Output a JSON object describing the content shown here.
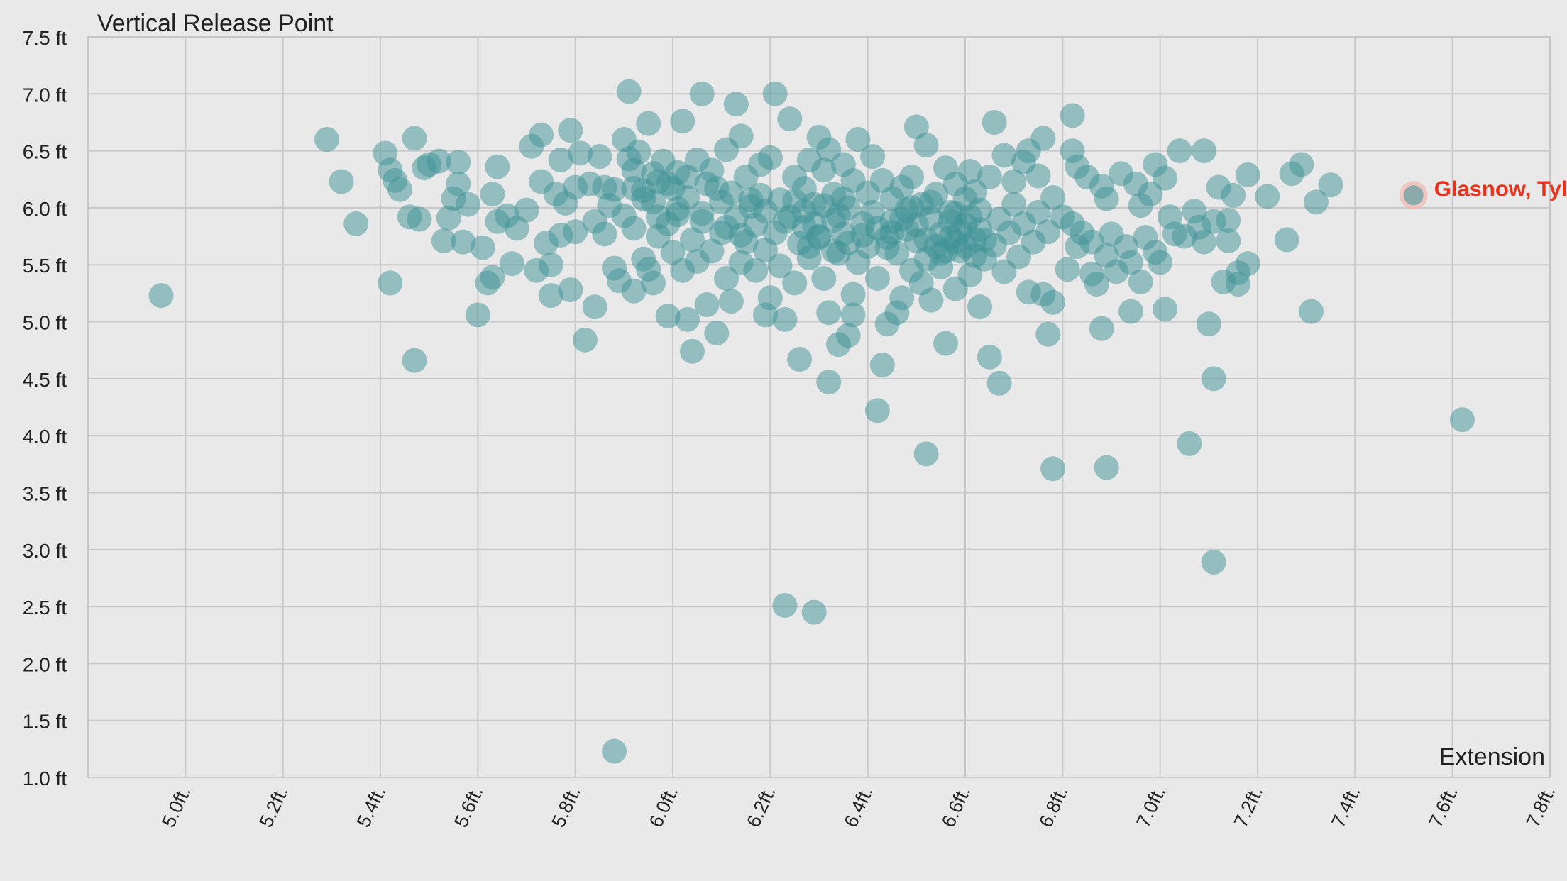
{
  "chart_data": {
    "type": "scatter",
    "title": "",
    "ylabel": "Vertical Release Point",
    "xlabel": "Extension",
    "xlim": [
      4.8,
      7.8
    ],
    "ylim": [
      1.0,
      7.5
    ],
    "x_ticks": [
      "5.0ft.",
      "5.2ft.",
      "5.4ft.",
      "5.6ft.",
      "5.8ft.",
      "6.0ft.",
      "6.2ft.",
      "6.4ft.",
      "6.6ft.",
      "6.8ft.",
      "7.0ft.",
      "7.2ft.",
      "7.4ft.",
      "7.6ft.",
      "7.8ft."
    ],
    "x_tick_values": [
      5.0,
      5.2,
      5.4,
      5.6,
      5.8,
      6.0,
      6.2,
      6.4,
      6.6,
      6.8,
      7.0,
      7.2,
      7.4,
      7.6,
      7.8
    ],
    "y_ticks": [
      "1.0 ft",
      "1.5 ft",
      "2.0 ft",
      "2.5 ft",
      "3.0 ft",
      "3.5 ft",
      "4.0 ft",
      "4.5 ft",
      "5.0 ft",
      "5.5 ft",
      "6.0 ft",
      "6.5 ft",
      "7.0 ft",
      "7.5 ft"
    ],
    "y_tick_values": [
      1.0,
      1.5,
      2.0,
      2.5,
      3.0,
      3.5,
      4.0,
      4.5,
      5.0,
      5.5,
      6.0,
      6.5,
      7.0,
      7.5
    ],
    "grid": true,
    "colors": {
      "points": "#3d9196",
      "highlight": "#e8331c",
      "grid": "#c8c8c8",
      "background": "#e9e9e9"
    },
    "highlight": {
      "label": "Glasnow, Tyle",
      "x": 7.52,
      "y": 6.11
    },
    "points": [
      [
        4.95,
        5.23
      ],
      [
        5.29,
        6.6
      ],
      [
        5.32,
        6.23
      ],
      [
        5.35,
        5.86
      ],
      [
        5.41,
        6.48
      ],
      [
        5.42,
        6.33
      ],
      [
        5.43,
        6.24
      ],
      [
        5.44,
        6.16
      ],
      [
        5.42,
        5.34
      ],
      [
        5.46,
        5.92
      ],
      [
        5.47,
        6.61
      ],
      [
        5.47,
        4.66
      ],
      [
        5.48,
        5.9
      ],
      [
        5.49,
        6.35
      ],
      [
        5.5,
        6.38
      ],
      [
        5.52,
        6.41
      ],
      [
        5.54,
        5.91
      ],
      [
        5.53,
        5.71
      ],
      [
        5.55,
        6.08
      ],
      [
        5.56,
        6.4
      ],
      [
        5.56,
        6.21
      ],
      [
        5.57,
        5.7
      ],
      [
        5.58,
        6.03
      ],
      [
        5.6,
        5.06
      ],
      [
        5.61,
        5.65
      ],
      [
        5.62,
        5.34
      ],
      [
        5.63,
        5.39
      ],
      [
        5.63,
        6.12
      ],
      [
        5.64,
        6.36
      ],
      [
        5.64,
        5.88
      ],
      [
        5.66,
        5.93
      ],
      [
        5.67,
        5.51
      ],
      [
        5.68,
        5.82
      ],
      [
        5.7,
        5.98
      ],
      [
        5.71,
        6.54
      ],
      [
        5.72,
        5.45
      ],
      [
        5.73,
        6.64
      ],
      [
        5.73,
        6.23
      ],
      [
        5.74,
        5.69
      ],
      [
        5.75,
        5.23
      ],
      [
        5.75,
        5.5
      ],
      [
        5.76,
        6.12
      ],
      [
        5.77,
        6.42
      ],
      [
        5.77,
        5.76
      ],
      [
        5.78,
        6.04
      ],
      [
        5.79,
        6.68
      ],
      [
        5.79,
        5.28
      ],
      [
        5.8,
        6.18
      ],
      [
        5.8,
        5.79
      ],
      [
        5.81,
        6.48
      ],
      [
        5.82,
        4.84
      ],
      [
        5.83,
        6.21
      ],
      [
        5.84,
        5.13
      ],
      [
        5.84,
        5.88
      ],
      [
        5.85,
        6.45
      ],
      [
        5.86,
        6.18
      ],
      [
        5.86,
        5.77
      ],
      [
        5.87,
        6.02
      ],
      [
        5.88,
        5.47
      ],
      [
        5.88,
        6.16
      ],
      [
        5.88,
        1.23
      ],
      [
        5.89,
        5.36
      ],
      [
        5.9,
        6.6
      ],
      [
        5.9,
        5.93
      ],
      [
        5.91,
        7.02
      ],
      [
        5.92,
        6.33
      ],
      [
        5.92,
        5.82
      ],
      [
        5.92,
        5.27
      ],
      [
        5.93,
        6.49
      ],
      [
        5.94,
        6.15
      ],
      [
        5.94,
        5.55
      ],
      [
        5.95,
        6.74
      ],
      [
        5.95,
        5.46
      ],
      [
        5.96,
        6.05
      ],
      [
        5.96,
        5.34
      ],
      [
        5.97,
        6.23
      ],
      [
        5.97,
        5.75
      ],
      [
        5.98,
        6.41
      ],
      [
        5.99,
        5.86
      ],
      [
        5.99,
        5.05
      ],
      [
        6.0,
        6.17
      ],
      [
        6.0,
        5.61
      ],
      [
        6.01,
        6.31
      ],
      [
        6.01,
        5.94
      ],
      [
        6.02,
        6.76
      ],
      [
        6.02,
        5.45
      ],
      [
        6.03,
        5.02
      ],
      [
        6.03,
        6.09
      ],
      [
        6.04,
        5.72
      ],
      [
        6.04,
        4.74
      ],
      [
        6.05,
        6.42
      ],
      [
        6.05,
        5.53
      ],
      [
        6.06,
        7.0
      ],
      [
        6.06,
        5.88
      ],
      [
        6.07,
        6.21
      ],
      [
        6.07,
        5.15
      ],
      [
        6.08,
        5.62
      ],
      [
        6.08,
        6.33
      ],
      [
        6.09,
        4.9
      ],
      [
        6.1,
        6.05
      ],
      [
        6.1,
        5.78
      ],
      [
        6.11,
        6.51
      ],
      [
        6.11,
        5.38
      ],
      [
        6.12,
        6.13
      ],
      [
        6.12,
        5.18
      ],
      [
        6.13,
        5.92
      ],
      [
        6.13,
        6.91
      ],
      [
        6.14,
        6.63
      ],
      [
        6.14,
        5.52
      ],
      [
        6.15,
        6.27
      ],
      [
        6.15,
        5.7
      ],
      [
        6.16,
        6.01
      ],
      [
        6.17,
        5.85
      ],
      [
        6.17,
        5.45
      ],
      [
        6.18,
        6.38
      ],
      [
        6.18,
        6.11
      ],
      [
        6.19,
        5.06
      ],
      [
        6.19,
        5.63
      ],
      [
        6.2,
        5.21
      ],
      [
        6.2,
        6.44
      ],
      [
        6.21,
        7.0
      ],
      [
        6.21,
        5.78
      ],
      [
        6.22,
        6.07
      ],
      [
        6.22,
        5.49
      ],
      [
        6.23,
        2.51
      ],
      [
        6.23,
        5.02
      ],
      [
        6.24,
        6.78
      ],
      [
        6.24,
        5.92
      ],
      [
        6.25,
        6.27
      ],
      [
        6.25,
        5.34
      ],
      [
        6.26,
        4.67
      ],
      [
        6.26,
        5.69
      ],
      [
        6.27,
        6.17
      ],
      [
        6.27,
        5.83
      ],
      [
        6.28,
        6.42
      ],
      [
        6.28,
        5.56
      ],
      [
        6.29,
        2.45
      ],
      [
        6.29,
        6.03
      ],
      [
        6.3,
        6.62
      ],
      [
        6.3,
        5.74
      ],
      [
        6.31,
        5.38
      ],
      [
        6.31,
        6.33
      ],
      [
        6.32,
        5.08
      ],
      [
        6.32,
        6.51
      ],
      [
        6.32,
        4.47
      ],
      [
        6.33,
        5.89
      ],
      [
        6.33,
        6.12
      ],
      [
        6.34,
        4.8
      ],
      [
        6.34,
        5.6
      ],
      [
        6.35,
        6.38
      ],
      [
        6.35,
        5.77
      ],
      [
        6.36,
        4.88
      ],
      [
        6.36,
        6.0
      ],
      [
        6.37,
        5.24
      ],
      [
        6.37,
        6.24
      ],
      [
        6.37,
        5.06
      ],
      [
        6.38,
        5.52
      ],
      [
        6.38,
        6.6
      ],
      [
        6.39,
        5.86
      ],
      [
        6.4,
        6.13
      ],
      [
        6.4,
        5.66
      ],
      [
        6.41,
        6.45
      ],
      [
        6.41,
        5.96
      ],
      [
        6.42,
        4.22
      ],
      [
        6.42,
        5.38
      ],
      [
        6.43,
        6.24
      ],
      [
        6.43,
        4.62
      ],
      [
        6.44,
        5.74
      ],
      [
        6.44,
        4.98
      ],
      [
        6.45,
        6.08
      ],
      [
        6.45,
        5.88
      ],
      [
        6.46,
        5.08
      ],
      [
        6.46,
        5.6
      ],
      [
        6.47,
        6.18
      ],
      [
        6.47,
        5.21
      ],
      [
        6.48,
        5.81
      ],
      [
        6.48,
        5.98
      ],
      [
        6.49,
        6.27
      ],
      [
        6.49,
        5.45
      ],
      [
        6.5,
        6.71
      ],
      [
        6.5,
        5.71
      ],
      [
        6.51,
        6.03
      ],
      [
        6.51,
        5.34
      ],
      [
        6.52,
        6.55
      ],
      [
        6.52,
        3.84
      ],
      [
        6.53,
        5.91
      ],
      [
        6.53,
        5.19
      ],
      [
        6.54,
        5.66
      ],
      [
        6.54,
        6.12
      ],
      [
        6.55,
        5.48
      ],
      [
        6.56,
        6.35
      ],
      [
        6.56,
        4.81
      ],
      [
        6.57,
        5.74
      ],
      [
        6.57,
        5.96
      ],
      [
        6.58,
        5.29
      ],
      [
        6.58,
        6.21
      ],
      [
        6.59,
        5.62
      ],
      [
        6.6,
        6.08
      ],
      [
        6.6,
        5.85
      ],
      [
        6.61,
        6.32
      ],
      [
        6.61,
        5.41
      ],
      [
        6.62,
        5.72
      ],
      [
        6.62,
        6.14
      ],
      [
        6.63,
        5.13
      ],
      [
        6.63,
        5.98
      ],
      [
        6.64,
        5.55
      ],
      [
        6.65,
        6.27
      ],
      [
        6.65,
        4.69
      ],
      [
        6.66,
        6.75
      ],
      [
        6.66,
        5.67
      ],
      [
        6.67,
        5.9
      ],
      [
        6.67,
        4.46
      ],
      [
        6.68,
        6.46
      ],
      [
        6.68,
        5.44
      ],
      [
        6.69,
        5.78
      ],
      [
        6.7,
        6.23
      ],
      [
        6.7,
        6.03
      ],
      [
        6.71,
        5.57
      ],
      [
        6.72,
        6.4
      ],
      [
        6.72,
        5.86
      ],
      [
        6.73,
        6.5
      ],
      [
        6.73,
        5.26
      ],
      [
        6.74,
        5.7
      ],
      [
        6.75,
        6.28
      ],
      [
        6.75,
        5.96
      ],
      [
        6.76,
        6.61
      ],
      [
        6.76,
        5.24
      ],
      [
        6.77,
        5.79
      ],
      [
        6.77,
        4.89
      ],
      [
        6.78,
        5.17
      ],
      [
        6.78,
        6.09
      ],
      [
        6.78,
        3.71
      ],
      [
        6.8,
        5.92
      ],
      [
        6.81,
        5.46
      ],
      [
        6.82,
        6.81
      ],
      [
        6.82,
        6.5
      ],
      [
        6.82,
        5.86
      ],
      [
        6.83,
        6.36
      ],
      [
        6.83,
        5.66
      ],
      [
        6.84,
        5.78
      ],
      [
        6.85,
        6.27
      ],
      [
        6.86,
        5.42
      ],
      [
        6.86,
        5.7
      ],
      [
        6.87,
        5.33
      ],
      [
        6.88,
        6.19
      ],
      [
        6.88,
        4.94
      ],
      [
        6.89,
        5.58
      ],
      [
        6.89,
        3.72
      ],
      [
        6.89,
        6.08
      ],
      [
        6.9,
        5.77
      ],
      [
        6.91,
        5.44
      ],
      [
        6.92,
        6.3
      ],
      [
        6.93,
        5.66
      ],
      [
        6.94,
        5.52
      ],
      [
        6.94,
        5.09
      ],
      [
        6.95,
        6.21
      ],
      [
        6.96,
        5.35
      ],
      [
        6.96,
        6.02
      ],
      [
        6.97,
        5.74
      ],
      [
        6.98,
        6.12
      ],
      [
        6.99,
        5.61
      ],
      [
        6.99,
        6.38
      ],
      [
        7.0,
        5.52
      ],
      [
        7.01,
        5.11
      ],
      [
        7.01,
        6.26
      ],
      [
        7.02,
        5.92
      ],
      [
        7.03,
        5.77
      ],
      [
        7.04,
        6.5
      ],
      [
        7.05,
        5.75
      ],
      [
        7.06,
        3.93
      ],
      [
        7.07,
        5.97
      ],
      [
        7.08,
        5.83
      ],
      [
        7.09,
        5.7
      ],
      [
        7.09,
        6.5
      ],
      [
        7.1,
        4.98
      ],
      [
        7.11,
        5.88
      ],
      [
        7.11,
        2.89
      ],
      [
        7.11,
        4.5
      ],
      [
        7.12,
        6.18
      ],
      [
        7.13,
        5.35
      ],
      [
        7.14,
        5.89
      ],
      [
        7.14,
        5.71
      ],
      [
        7.15,
        6.11
      ],
      [
        7.16,
        5.43
      ],
      [
        7.16,
        5.33
      ],
      [
        7.18,
        5.51
      ],
      [
        7.18,
        6.29
      ],
      [
        7.22,
        6.1
      ],
      [
        7.26,
        5.72
      ],
      [
        7.27,
        6.3
      ],
      [
        7.29,
        6.38
      ],
      [
        7.31,
        5.09
      ],
      [
        7.32,
        6.05
      ],
      [
        7.35,
        6.2
      ],
      [
        7.62,
        4.14
      ],
      [
        6.44,
        5.65
      ],
      [
        6.47,
        5.9
      ],
      [
        6.49,
        6.0
      ],
      [
        6.5,
        5.85
      ],
      [
        6.52,
        5.72
      ],
      [
        6.53,
        6.05
      ],
      [
        6.55,
        5.77
      ],
      [
        6.56,
        5.62
      ],
      [
        6.57,
        5.88
      ],
      [
        6.58,
        5.7
      ],
      [
        6.59,
        5.79
      ],
      [
        6.6,
        5.66
      ],
      [
        6.61,
        5.92
      ],
      [
        6.62,
        5.58
      ],
      [
        6.63,
        5.81
      ],
      [
        6.64,
        5.72
      ],
      [
        6.58,
        5.95
      ],
      [
        6.55,
        5.6
      ],
      [
        6.52,
        5.55
      ],
      [
        6.45,
        5.78
      ],
      [
        6.42,
        5.82
      ],
      [
        6.39,
        5.76
      ],
      [
        6.36,
        5.69
      ],
      [
        6.34,
        5.93
      ],
      [
        6.31,
        6.02
      ],
      [
        6.29,
        5.86
      ],
      [
        6.27,
        5.97
      ],
      [
        6.35,
        6.08
      ],
      [
        6.33,
        5.62
      ],
      [
        6.3,
        5.75
      ],
      [
        6.28,
        5.66
      ],
      [
        6.25,
        6.06
      ],
      [
        6.23,
        5.88
      ],
      [
        6.19,
        5.97
      ],
      [
        6.16,
        6.07
      ],
      [
        6.14,
        5.76
      ],
      [
        6.11,
        5.83
      ],
      [
        6.09,
        6.17
      ],
      [
        6.06,
        5.95
      ],
      [
        6.03,
        6.27
      ],
      [
        6.01,
        5.99
      ],
      [
        5.99,
        6.21
      ],
      [
        5.97,
        5.92
      ],
      [
        5.96,
        6.3
      ],
      [
        5.94,
        6.08
      ],
      [
        5.92,
        6.17
      ],
      [
        5.91,
        6.43
      ]
    ]
  }
}
